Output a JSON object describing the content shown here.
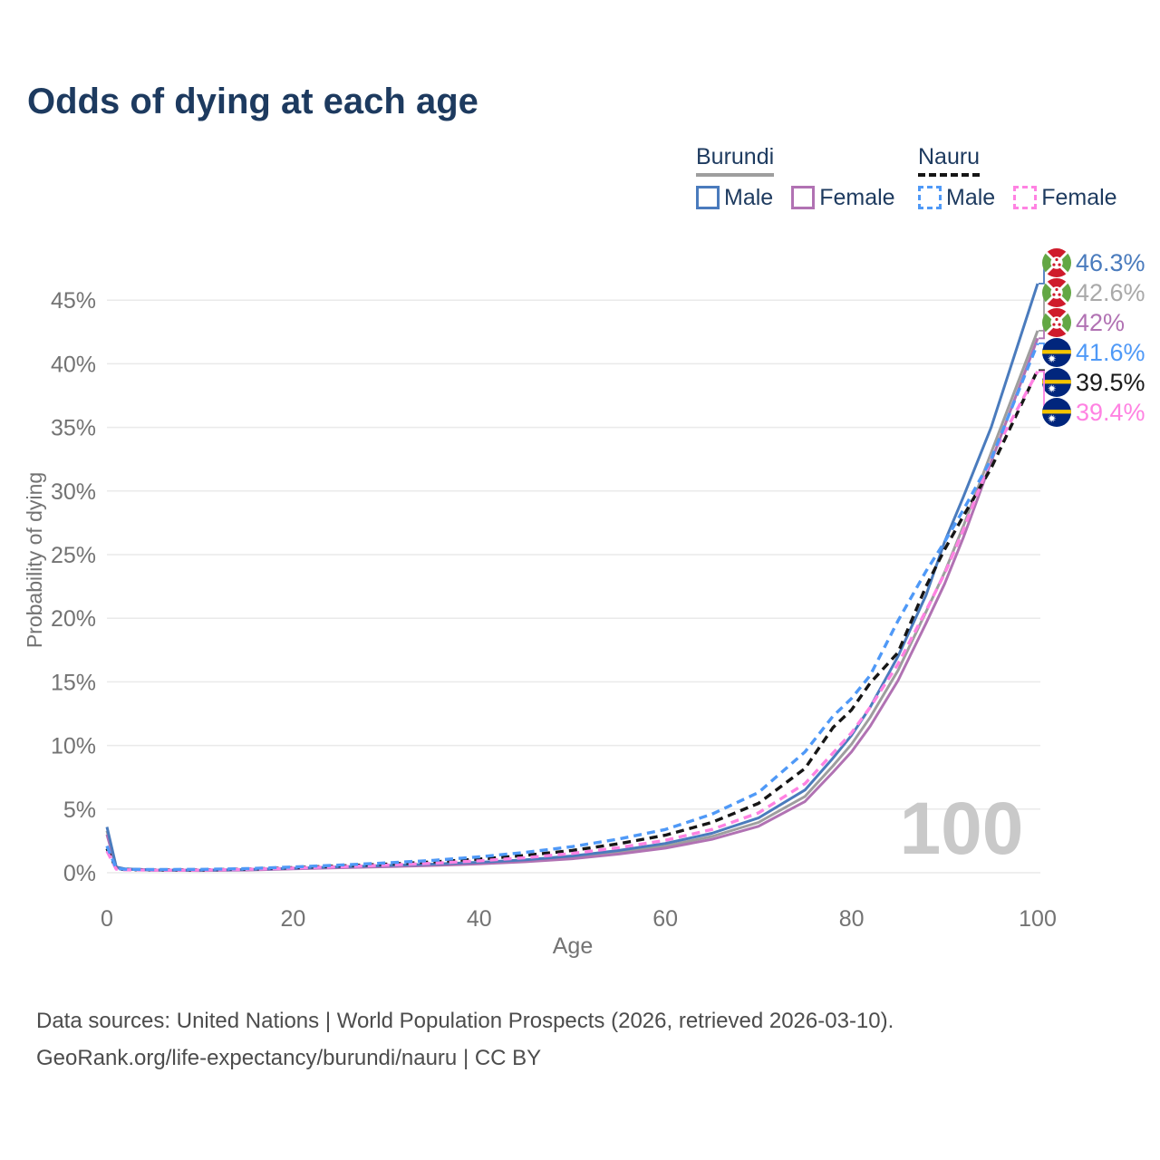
{
  "title": "Odds of dying at each age",
  "legend": {
    "groups": [
      {
        "name": "Burundi",
        "line_style": "solid",
        "line_color": "#9e9e9e",
        "items": [
          {
            "label": "Male"
          },
          {
            "label": "Female"
          }
        ]
      },
      {
        "name": "Nauru",
        "line_style": "dashed",
        "line_color": "#161616",
        "items": [
          {
            "label": "Male"
          },
          {
            "label": "Female"
          }
        ]
      }
    ]
  },
  "chart_data": {
    "type": "line",
    "title": "Odds of dying at each age",
    "xlabel": "Age",
    "ylabel": "Probability of dying",
    "x_ticks": [
      0,
      20,
      40,
      60,
      80,
      100
    ],
    "y_ticks_percent": [
      0,
      5,
      10,
      15,
      20,
      25,
      30,
      35,
      40,
      45
    ],
    "xlim": [
      0,
      100
    ],
    "ylim_percent": [
      0,
      48
    ],
    "grid": "horizontal",
    "hover_age_watermark": "100",
    "ages": [
      0,
      1,
      2,
      5,
      10,
      15,
      20,
      25,
      30,
      35,
      40,
      45,
      50,
      55,
      60,
      65,
      70,
      75,
      78,
      80,
      82,
      85,
      88,
      90,
      92,
      95,
      100
    ],
    "series": [
      {
        "id": "burundi-male",
        "country": "Burundi",
        "sex": "Male",
        "color": "#4a7bbd",
        "dashed": false,
        "flag": "burundi",
        "end_label": "46.3%",
        "label_color": "#4a7bbd",
        "values": [
          3.6,
          0.45,
          0.3,
          0.22,
          0.2,
          0.25,
          0.35,
          0.46,
          0.56,
          0.68,
          0.82,
          1.02,
          1.32,
          1.75,
          2.3,
          3.1,
          4.3,
          6.5,
          9.0,
          10.8,
          13.0,
          17.0,
          21.8,
          26.0,
          29.5,
          35.0,
          46.3
        ]
      },
      {
        "id": "burundi-both",
        "country": "Burundi",
        "sex": "Both",
        "color": "#9e9e9e",
        "dashed": false,
        "flag": "burundi",
        "end_label": "42.6%",
        "label_color": "#a9a9a9",
        "values": [
          3.3,
          0.42,
          0.28,
          0.2,
          0.18,
          0.23,
          0.32,
          0.42,
          0.51,
          0.62,
          0.75,
          0.93,
          1.2,
          1.6,
          2.1,
          2.85,
          3.95,
          6.0,
          8.4,
          10.1,
          12.2,
          15.9,
          20.5,
          23.6,
          27.2,
          33.0,
          42.6
        ]
      },
      {
        "id": "burundi-female",
        "country": "Burundi",
        "sex": "Female",
        "color": "#b172b3",
        "dashed": false,
        "flag": "burundi",
        "end_label": "42%",
        "label_color": "#b172b3",
        "values": [
          3.0,
          0.4,
          0.26,
          0.19,
          0.17,
          0.21,
          0.3,
          0.39,
          0.47,
          0.57,
          0.69,
          0.86,
          1.1,
          1.47,
          1.93,
          2.62,
          3.65,
          5.6,
          7.9,
          9.5,
          11.5,
          15.1,
          19.6,
          22.7,
          26.3,
          32.3,
          42.0
        ]
      },
      {
        "id": "nauru-male",
        "country": "Nauru",
        "sex": "Male",
        "color": "#4f99f7",
        "dashed": true,
        "flag": "nauru",
        "end_label": "41.6%",
        "label_color": "#4f99f7",
        "values": [
          2.1,
          0.32,
          0.27,
          0.25,
          0.26,
          0.32,
          0.45,
          0.6,
          0.77,
          0.97,
          1.25,
          1.6,
          2.05,
          2.65,
          3.4,
          4.6,
          6.3,
          9.5,
          12.3,
          13.7,
          15.5,
          19.8,
          23.7,
          26.0,
          28.5,
          32.5,
          41.6
        ]
      },
      {
        "id": "nauru-both",
        "country": "Nauru",
        "sex": "Both",
        "color": "#161616",
        "dashed": true,
        "flag": "nauru",
        "end_label": "39.5%",
        "label_color": "#1a1a1a",
        "values": [
          1.9,
          0.3,
          0.25,
          0.22,
          0.23,
          0.28,
          0.4,
          0.53,
          0.67,
          0.85,
          1.07,
          1.36,
          1.75,
          2.28,
          2.95,
          3.95,
          5.45,
          8.2,
          11.4,
          12.8,
          14.9,
          17.3,
          22.5,
          25.4,
          28.0,
          31.8,
          39.5
        ]
      },
      {
        "id": "nauru-female",
        "country": "Nauru",
        "sex": "Female",
        "color": "#ff82e2",
        "dashed": true,
        "flag": "nauru",
        "end_label": "39.4%",
        "label_color": "#ff82e2",
        "values": [
          1.7,
          0.28,
          0.23,
          0.2,
          0.21,
          0.26,
          0.36,
          0.47,
          0.59,
          0.74,
          0.93,
          1.18,
          1.52,
          1.97,
          2.55,
          3.4,
          4.7,
          7.0,
          9.4,
          11.0,
          13.0,
          16.4,
          20.6,
          23.5,
          26.9,
          32.6,
          39.4
        ]
      }
    ],
    "flag_colors": {
      "burundi": {
        "red": "#cf1b2b",
        "green": "#63a744",
        "white": "#ffffff"
      },
      "nauru": {
        "blue": "#01267d",
        "yellow": "#f5c400",
        "white": "#ffffff"
      }
    },
    "axis_text_color": "#737373",
    "grid_color": "#eaeaea",
    "watermark_color": "#c9c9c9"
  },
  "footer": {
    "line1": "Data sources: United Nations | World Population Prospects (2026, retrieved 2026-03-10).",
    "line2": "GeoRank.org/life-expectancy/burundi/nauru | CC BY"
  }
}
